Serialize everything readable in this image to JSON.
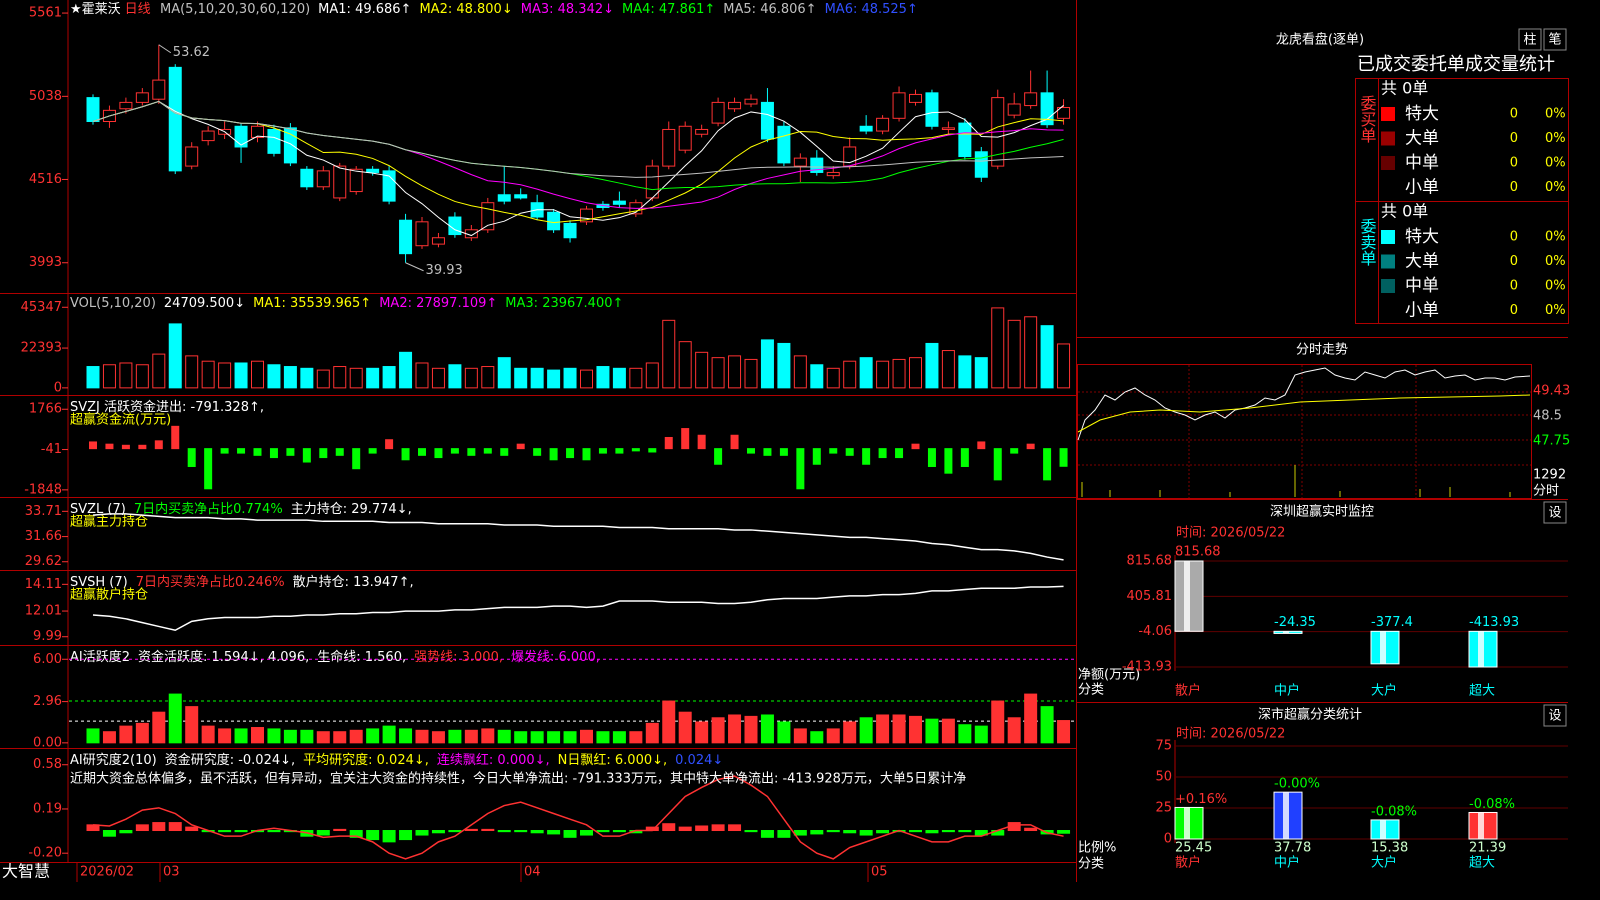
{
  "stock": {
    "name": "★霍莱沃",
    "period": "日线"
  },
  "colors": {
    "up": "#ff3232",
    "down": "#00ffff",
    "axis": "#ff3232"
  },
  "dates": [
    "2026/02",
    "03",
    "04",
    "05"
  ],
  "brand": "大智慧",
  "panels": {
    "price": {
      "header": [
        {
          "text": "MA(5,10,20,30,60,120)",
          "color": "#c0c0c0"
        },
        {
          "text": "MA1: 49.686↑",
          "color": "#ffffff"
        },
        {
          "text": "MA2: 48.800↓",
          "color": "#ffff00"
        },
        {
          "text": "MA3: 48.342↓",
          "color": "#ff00ff"
        },
        {
          "text": "MA4: 47.861↑",
          "color": "#00ff00"
        },
        {
          "text": "MA5: 46.806↑",
          "color": "#c0c0c0"
        },
        {
          "text": "MA6: 48.525↑",
          "color": "#3050ff"
        }
      ],
      "ylim": [
        3803,
        5643
      ],
      "yticks": [
        5561,
        5038,
        4516,
        3993
      ],
      "high_label": "53.62",
      "low_label": "39.93",
      "candles": [
        [
          5030,
          5050,
          4860,
          4880
        ],
        [
          4880,
          4980,
          4840,
          4950
        ],
        [
          4960,
          5030,
          4930,
          5000
        ],
        [
          5000,
          5090,
          4980,
          5060
        ],
        [
          5020,
          5362,
          4990,
          5140
        ],
        [
          5220,
          5240,
          4550,
          4570
        ],
        [
          4600,
          4750,
          4580,
          4720
        ],
        [
          4760,
          4850,
          4730,
          4820
        ],
        [
          4800,
          4880,
          4770,
          4830
        ],
        [
          4850,
          4870,
          4620,
          4720
        ],
        [
          4780,
          4880,
          4750,
          4850
        ],
        [
          4830,
          4860,
          4660,
          4680
        ],
        [
          4840,
          4870,
          4600,
          4620
        ],
        [
          4580,
          4600,
          4450,
          4470
        ],
        [
          4470,
          4600,
          4450,
          4570
        ],
        [
          4400,
          4620,
          4380,
          4600
        ],
        [
          4440,
          4600,
          4420,
          4580
        ],
        [
          4580,
          4600,
          4540,
          4560
        ],
        [
          4570,
          4600,
          4360,
          4380
        ],
        [
          4260,
          4300,
          3993,
          4050
        ],
        [
          4100,
          4280,
          4080,
          4250
        ],
        [
          4110,
          4180,
          4090,
          4150
        ],
        [
          4280,
          4310,
          4150,
          4170
        ],
        [
          4150,
          4230,
          4130,
          4200
        ],
        [
          4200,
          4400,
          4180,
          4370
        ],
        [
          4420,
          4600,
          4360,
          4380
        ],
        [
          4420,
          4460,
          4390,
          4400
        ],
        [
          4370,
          4420,
          4260,
          4280
        ],
        [
          4310,
          4330,
          4180,
          4200
        ],
        [
          4240,
          4260,
          4120,
          4150
        ],
        [
          4250,
          4350,
          4230,
          4330
        ],
        [
          4360,
          4380,
          4320,
          4340
        ],
        [
          4380,
          4440,
          4340,
          4360
        ],
        [
          4300,
          4390,
          4280,
          4370
        ],
        [
          4400,
          4640,
          4380,
          4600
        ],
        [
          4600,
          4880,
          4580,
          4830
        ],
        [
          4700,
          4880,
          4680,
          4850
        ],
        [
          4800,
          4860,
          4780,
          4830
        ],
        [
          4870,
          5030,
          4850,
          5000
        ],
        [
          4960,
          5030,
          4940,
          5000
        ],
        [
          4990,
          5050,
          4970,
          5020
        ],
        [
          5000,
          5090,
          4750,
          4770
        ],
        [
          4850,
          4880,
          4600,
          4620
        ],
        [
          4600,
          4680,
          4500,
          4650
        ],
        [
          4650,
          4700,
          4540,
          4560
        ],
        [
          4540,
          4600,
          4520,
          4560
        ],
        [
          4600,
          4780,
          4580,
          4720
        ],
        [
          4850,
          4920,
          4800,
          4820
        ],
        [
          4820,
          4920,
          4800,
          4900
        ],
        [
          4900,
          5100,
          4880,
          5060
        ],
        [
          5000,
          5080,
          4980,
          5050
        ],
        [
          5060,
          5080,
          4830,
          4850
        ],
        [
          4830,
          4880,
          4800,
          4840
        ],
        [
          4870,
          4900,
          4640,
          4660
        ],
        [
          4690,
          4720,
          4500,
          4530
        ],
        [
          4600,
          5080,
          4580,
          5030
        ],
        [
          4920,
          5060,
          4900,
          4990
        ],
        [
          4980,
          5200,
          4960,
          5060
        ],
        [
          5060,
          5200,
          4840,
          4860
        ],
        [
          4900,
          5020,
          4860,
          4968
        ]
      ]
    },
    "vol": {
      "header": [
        {
          "text": "VOL(5,10,20)",
          "color": "#c0c0c0"
        },
        {
          "text": "24709.500↓",
          "color": "#ffffff"
        },
        {
          "text": "MA1: 35539.965↑",
          "color": "#ffff00"
        },
        {
          "text": "MA2: 27897.109↑",
          "color": "#ff00ff"
        },
        {
          "text": "MA3: 23967.400↑",
          "color": "#00ff00"
        }
      ],
      "ylim": [
        -4018,
        53383
      ],
      "yticks": [
        45347,
        22393,
        0
      ],
      "values": [
        12000,
        13000,
        14000,
        13000,
        19000,
        36000,
        18000,
        15000,
        14000,
        14000,
        15000,
        13000,
        12000,
        11000,
        10000,
        12000,
        11000,
        11000,
        12000,
        20000,
        14000,
        11000,
        13000,
        11000,
        12000,
        17000,
        11000,
        11000,
        10000,
        11000,
        10000,
        12000,
        11000,
        11000,
        14000,
        38000,
        26000,
        20000,
        17000,
        18000,
        16000,
        27000,
        25000,
        18000,
        13000,
        11000,
        15000,
        17000,
        15000,
        16000,
        17000,
        25000,
        21000,
        18000,
        17000,
        45000,
        38000,
        40000,
        35000,
        24709
      ]
    },
    "flow": {
      "header": [
        {
          "text": "SVZJ  活跃资金进出: -791.328↑,",
          "color": "#ffffff"
        }
      ],
      "subheader": "超赢资金流(万元)",
      "ylim": [
        -2168,
        2315
      ],
      "yticks": [
        1766,
        -41,
        -1848
      ],
      "values": [
        300,
        200,
        150,
        150,
        350,
        1000,
        -800,
        -1800,
        -200,
        -200,
        -300,
        -400,
        -300,
        -600,
        -400,
        -300,
        -900,
        -200,
        400,
        -500,
        -300,
        -400,
        -200,
        -300,
        -200,
        -300,
        200,
        -300,
        -500,
        -400,
        -500,
        -200,
        -200,
        -100,
        -150,
        500,
        900,
        600,
        -700,
        600,
        -200,
        -300,
        -300,
        -1800,
        -700,
        -200,
        -300,
        -700,
        -400,
        -400,
        200,
        -800,
        -1100,
        -800,
        300,
        -1400,
        -200,
        200,
        -1400,
        -791
      ]
    },
    "svzl": {
      "header": [
        {
          "text": "SVZL (7)",
          "color": "#ffffff"
        },
        {
          "text": "7日内买卖净占比0.774%",
          "color": "#00ff00"
        },
        {
          "text": "主力持仓: 29.774↓,",
          "color": "#ffffff"
        }
      ],
      "subheader": "超赢主力持仓",
      "ylim": [
        28.95,
        34.71
      ],
      "yticks": [
        33.71,
        31.66,
        29.62
      ],
      "values": [
        33.4,
        33.5,
        33.5,
        33.4,
        33.3,
        33.2,
        33.2,
        33.2,
        33.1,
        33.1,
        33.0,
        33.0,
        33.0,
        33.0,
        32.9,
        32.9,
        32.9,
        32.9,
        32.8,
        32.8,
        32.8,
        32.7,
        32.7,
        32.7,
        32.7,
        32.6,
        32.6,
        32.6,
        32.5,
        32.5,
        32.5,
        32.5,
        32.4,
        32.4,
        32.4,
        32.3,
        32.3,
        32.3,
        32.3,
        32.2,
        32.2,
        32.1,
        32.0,
        31.9,
        31.8,
        31.7,
        31.6,
        31.6,
        31.5,
        31.4,
        31.3,
        31.1,
        31.0,
        30.8,
        30.6,
        30.6,
        30.5,
        30.3,
        30.0,
        29.77
      ]
    },
    "svsh": {
      "header": [
        {
          "text": "SVSH (7)",
          "color": "#ffffff"
        },
        {
          "text": "7日内买卖净占比0.246%",
          "color": "#ff3232"
        },
        {
          "text": "散户持仓: 13.947↑,",
          "color": "#ffffff"
        }
      ],
      "subheader": "超赢散户持仓",
      "ylim": [
        9.34,
        15.08
      ],
      "yticks": [
        14.11,
        12.01,
        9.99
      ],
      "values": [
        11.7,
        11.6,
        11.4,
        11.1,
        10.8,
        10.5,
        11.2,
        11.4,
        11.5,
        11.5,
        11.5,
        11.6,
        11.6,
        11.7,
        11.7,
        11.8,
        11.8,
        11.9,
        11.9,
        12.0,
        12.0,
        12.0,
        12.1,
        12.1,
        12.2,
        12.3,
        12.3,
        12.3,
        12.4,
        12.4,
        12.3,
        12.4,
        12.8,
        12.8,
        12.8,
        12.7,
        12.7,
        12.7,
        12.6,
        12.6,
        12.7,
        12.9,
        13.0,
        13.0,
        13.0,
        13.1,
        13.2,
        13.2,
        13.3,
        13.3,
        13.4,
        13.6,
        13.6,
        13.7,
        13.8,
        13.8,
        13.8,
        13.9,
        13.9,
        13.95
      ]
    },
    "act": {
      "header": [
        {
          "text": "AI活跃度2",
          "color": "#ffffff"
        },
        {
          "text": "资金活跃度: 1.594↓, 4.096,",
          "color": "#ffffff"
        },
        {
          "text": "生命线: 1.560,",
          "color": "#ffffff"
        },
        {
          "text": "强势线: 3.000,",
          "color": "#ff3232"
        },
        {
          "text": "爆发线: 6.000,",
          "color": "#ff00ff"
        }
      ],
      "ylim": [
        -0.37,
        6.88
      ],
      "yticks": [
        {
          "value": 6,
          "label": "6.00"
        },
        2.96,
        {
          "value": 0,
          "label": "0.00"
        }
      ],
      "guides": [
        {
          "value": 6,
          "color": "#ff00ff"
        },
        {
          "value": 3,
          "color": "#00ff00"
        },
        {
          "value": 1.56,
          "color": "#ffffff"
        }
      ],
      "values": [
        1.0,
        0.8,
        1.2,
        1.4,
        2.2,
        3.5,
        2.6,
        1.2,
        1.0,
        1.0,
        1.1,
        1.0,
        0.9,
        0.9,
        0.8,
        0.8,
        0.9,
        1.0,
        1.2,
        1.0,
        0.9,
        0.8,
        0.9,
        0.9,
        1.0,
        0.9,
        0.8,
        0.8,
        0.8,
        0.8,
        0.9,
        0.8,
        0.8,
        0.8,
        1.4,
        3.0,
        2.2,
        1.5,
        1.8,
        2.0,
        1.9,
        2.0,
        1.5,
        1.0,
        0.8,
        1.0,
        1.5,
        1.8,
        2.0,
        2.0,
        1.9,
        1.7,
        1.7,
        1.3,
        1.2,
        3.0,
        1.8,
        3.5,
        2.6,
        1.6
      ]
    },
    "res": {
      "header": [
        {
          "text": "AI研究度2(10)",
          "color": "#ffffff"
        },
        {
          "text": "资金研究度: -0.024↓,",
          "color": "#ffffff"
        },
        {
          "text": "平均研究度: 0.024↓,",
          "color": "#ffff00"
        },
        {
          "text": "连续飘红: 0.000↓,",
          "color": "#ff00ff"
        },
        {
          "text": "N日飘红: 6.000↓,",
          "color": "#ffff00"
        },
        {
          "text": "0.024↓",
          "color": "#3050ff"
        }
      ],
      "note": "近期大资金总体偏多，虽不活跃，但有异动，宜关注大资金的持续性，今日大单净流出: -791.333万元，其中特大单净流出: -413.928万元，大单5日累计净",
      "ylim": [
        -0.26,
        0.71
      ],
      "yticks": [
        0.58,
        0.19,
        {
          "value": -0.2,
          "label": "-0.20"
        }
      ],
      "values": [
        0.05,
        -0.05,
        -0.02,
        0.05,
        0.07,
        0.07,
        0.03,
        -0.01,
        -0.01,
        -0.01,
        -0.01,
        -0.01,
        -0.01,
        -0.05,
        -0.04,
        0.01,
        -0.06,
        -0.08,
        -0.1,
        -0.08,
        -0.04,
        -0.02,
        -0.01,
        0.01,
        0.01,
        -0.01,
        -0.01,
        -0.02,
        -0.03,
        -0.06,
        -0.04,
        -0.01,
        -0.01,
        -0.02,
        0.03,
        0.06,
        0.03,
        0.04,
        0.05,
        0.05,
        -0.01,
        -0.06,
        -0.06,
        -0.04,
        -0.03,
        -0.01,
        -0.02,
        -0.04,
        -0.02,
        -0.01,
        -0.01,
        -0.02,
        -0.01,
        -0.01,
        -0.04,
        -0.04,
        0.07,
        0.02,
        -0.03,
        -0.024
      ],
      "line": [
        0.05,
        0.04,
        0.1,
        0.18,
        0.2,
        0.15,
        0.05,
        0.0,
        -0.05,
        -0.05,
        0.0,
        0.02,
        0.0,
        -0.02,
        -0.06,
        -0.05,
        -0.05,
        -0.1,
        -0.2,
        -0.25,
        -0.2,
        -0.1,
        -0.05,
        0.05,
        0.15,
        0.22,
        0.25,
        0.2,
        0.15,
        0.1,
        0.05,
        -0.05,
        -0.05,
        0.0,
        0.0,
        0.15,
        0.3,
        0.38,
        0.45,
        0.48,
        0.4,
        0.3,
        0.1,
        -0.1,
        -0.2,
        -0.25,
        -0.15,
        -0.1,
        -0.05,
        0.0,
        -0.05,
        -0.1,
        -0.1,
        -0.05,
        -0.05,
        0.0,
        0.05,
        0.05,
        -0.02,
        -0.05
      ]
    }
  },
  "right": {
    "dragon": {
      "title": "龙虎看盘(逐单)",
      "buttons": [
        "柱",
        "笔"
      ],
      "subtitle": "已成交委托单成交量统计",
      "buy": {
        "label": "委买单",
        "total": "共 0单",
        "rows": [
          {
            "name": "特大",
            "color": "#ff0000",
            "count": 0,
            "pct": "0%"
          },
          {
            "name": "大单",
            "color": "#990000",
            "count": 0,
            "pct": "0%"
          },
          {
            "name": "中单",
            "color": "#660000",
            "count": 0,
            "pct": "0%"
          },
          {
            "name": "小单",
            "color": null,
            "count": 0,
            "pct": "0%"
          }
        ]
      },
      "sell": {
        "label": "委卖单",
        "total": "共 0单",
        "rows": [
          {
            "name": "特大",
            "color": "#00ffff",
            "count": 0,
            "pct": "0%"
          },
          {
            "name": "大单",
            "color": "#008080",
            "count": 0,
            "pct": "0%"
          },
          {
            "name": "中单",
            "color": "#006060",
            "count": 0,
            "pct": "0%"
          },
          {
            "name": "小单",
            "color": null,
            "count": 0,
            "pct": "0%"
          }
        ]
      }
    },
    "intraday": {
      "title": "分时走势",
      "labels": [
        "49.43",
        "48.5",
        "47.75",
        "1292",
        "分时"
      ]
    },
    "monitor": {
      "type": "bar",
      "title": "深圳超赢实时监控",
      "button": "设",
      "time": "时间: 2026/05/22",
      "ylabel": "净额(万元)",
      "xlabel": "分类",
      "categories": [
        "散户",
        "中户",
        "大户",
        "超大"
      ],
      "values": [
        815.68,
        -24.35,
        -377.4,
        -413.93
      ],
      "ylim": [
        -413.93,
        815.68
      ],
      "yticks": [
        815.68,
        405.81,
        -4.06,
        -413.93
      ]
    },
    "stats": {
      "type": "bar",
      "title": "深市超赢分类统计",
      "button": "设",
      "time": "时间: 2026/05/22",
      "ylabel": "比例%",
      "xlabel": "分类",
      "categories": [
        "散户",
        "中户",
        "大户",
        "超大"
      ],
      "values": [
        25.45,
        37.78,
        15.38,
        21.39
      ],
      "colors": [
        "#00ff00",
        "#2040ff",
        "#00ffff",
        "#ff3232"
      ],
      "changes": [
        {
          "value": 0.16,
          "label": "+0.16%"
        },
        {
          "value": -0.0,
          "label": "-0.00%"
        },
        {
          "value": -0.08,
          "label": "-0.08%"
        },
        {
          "value": -0.08,
          "label": "-0.08%"
        }
      ],
      "ylim": [
        0,
        75
      ],
      "yticks": [
        75,
        50,
        25,
        0
      ]
    }
  }
}
